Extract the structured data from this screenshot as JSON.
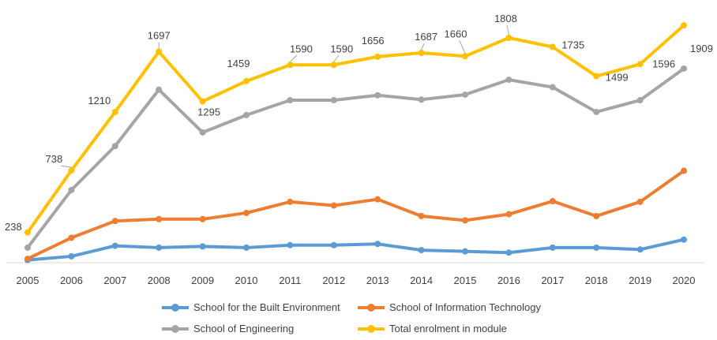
{
  "chart_data": {
    "type": "line",
    "title": "",
    "xlabel": "",
    "ylabel": "",
    "x": [
      "2005",
      "2006",
      "2007",
      "2008",
      "2009",
      "2010",
      "2011",
      "2012",
      "2013",
      "2014",
      "2015",
      "2016",
      "2017",
      "2018",
      "2019",
      "2020"
    ],
    "ylim": [
      0,
      2050
    ],
    "grid": false,
    "legend_position": "bottom",
    "series": [
      {
        "name": "School for the Built Environment",
        "color": "#5B9BD5",
        "values": [
          15,
          45,
          130,
          115,
          125,
          115,
          135,
          135,
          145,
          95,
          85,
          75,
          115,
          115,
          100,
          180
        ]
      },
      {
        "name": "School of Information Technology",
        "color": "#ED7D31",
        "values": [
          25,
          195,
          330,
          345,
          345,
          395,
          485,
          455,
          505,
          370,
          335,
          385,
          490,
          370,
          485,
          735
        ]
      },
      {
        "name": "School of Engineering",
        "color": "#A5A5A5",
        "values": [
          115,
          580,
          935,
          1390,
          1045,
          1185,
          1305,
          1305,
          1345,
          1310,
          1350,
          1470,
          1410,
          1210,
          1305,
          1560
        ]
      },
      {
        "name": "Total enrolment in module",
        "color": "#FFC000",
        "values": [
          238,
          738,
          1210,
          1697,
          1295,
          1459,
          1590,
          1590,
          1656,
          1687,
          1660,
          1808,
          1735,
          1499,
          1596,
          1909
        ],
        "data_labels": [
          "238",
          "738",
          "1210",
          "1697",
          "1295",
          "1459",
          "1590",
          "1590",
          "1656",
          "1687",
          "1660",
          "1808",
          "1735",
          "1499",
          "1596",
          "1909"
        ]
      }
    ]
  }
}
